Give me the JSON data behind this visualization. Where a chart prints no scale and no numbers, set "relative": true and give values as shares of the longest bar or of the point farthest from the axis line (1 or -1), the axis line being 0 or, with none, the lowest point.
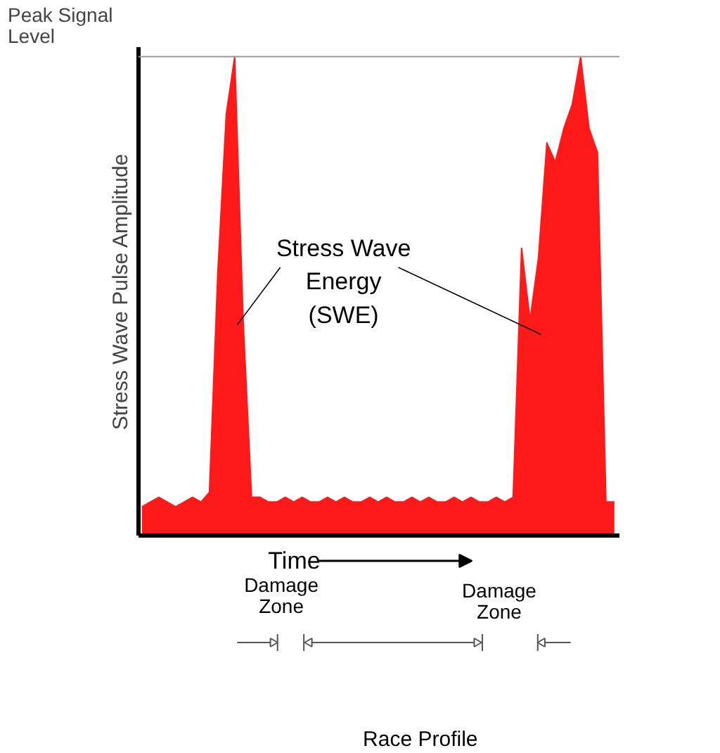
{
  "chart_data": {
    "type": "area",
    "relative": true,
    "xlabel": "Time",
    "ylabel": "Stress Wave Pulse Amplitude",
    "categories": [
      null,
      null,
      null,
      null,
      null,
      null,
      null,
      null,
      null,
      null,
      null,
      null,
      null,
      null,
      null,
      null,
      null,
      null,
      null,
      null,
      null,
      null,
      null,
      null,
      null,
      null,
      null,
      null,
      null,
      null,
      null,
      null,
      null,
      null,
      null,
      null,
      null,
      null,
      null,
      null,
      null,
      null,
      null,
      null,
      null,
      null,
      null,
      null,
      null,
      null,
      null,
      null,
      null,
      null,
      null,
      null,
      null
    ],
    "color": "#ff1a1a",
    "values": [
      0.06,
      0.07,
      0.08,
      0.07,
      0.06,
      0.07,
      0.08,
      0.07,
      0.09,
      0.55,
      0.88,
      1.0,
      0.45,
      0.08,
      0.08,
      0.07,
      0.07,
      0.08,
      0.07,
      0.08,
      0.07,
      0.07,
      0.08,
      0.07,
      0.08,
      0.07,
      0.07,
      0.08,
      0.07,
      0.08,
      0.07,
      0.07,
      0.08,
      0.07,
      0.08,
      0.07,
      0.07,
      0.08,
      0.07,
      0.08,
      0.07,
      0.07,
      0.08,
      0.07,
      0.08,
      0.6,
      0.45,
      0.58,
      0.82,
      0.78,
      0.85,
      0.9,
      1.0,
      0.85,
      0.8,
      0.07,
      0.07
    ],
    "ref_lines": [
      {
        "axis": "y",
        "value": 1,
        "label": "Peak Signal Level",
        "color": "#999999"
      }
    ],
    "annotations": [
      "Stress Wave Energy (SWE)",
      "Damage Zone",
      "Damage Zone",
      "Race Profile"
    ],
    "grid": false
  }
}
